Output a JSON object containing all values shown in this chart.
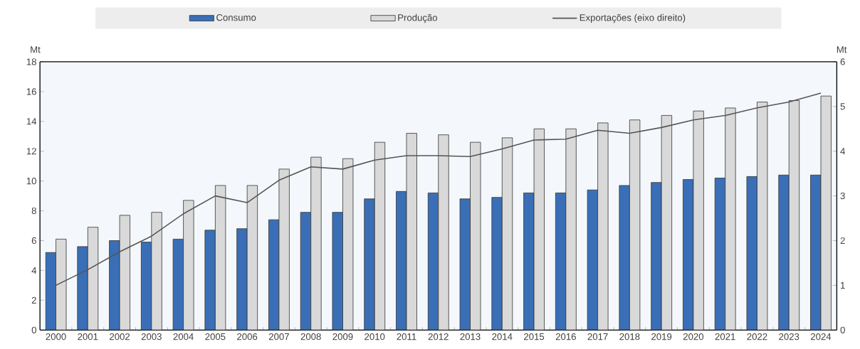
{
  "chart_data": {
    "type": "bar",
    "ylabel": "Mt",
    "y2label": "Mt",
    "categories": [
      "2000",
      "2001",
      "2002",
      "2003",
      "2004",
      "2005",
      "2006",
      "2007",
      "2008",
      "2009",
      "2010",
      "2011",
      "2012",
      "2013",
      "2014",
      "2015",
      "2016",
      "2017",
      "2018",
      "2019",
      "2020",
      "2021",
      "2022",
      "2023",
      "2024"
    ],
    "series": [
      {
        "name": "Consumo",
        "color": "#3a6fb7",
        "values": [
          5.2,
          5.6,
          6.0,
          5.9,
          6.1,
          6.7,
          6.8,
          7.4,
          7.9,
          7.9,
          8.8,
          9.3,
          9.2,
          8.8,
          8.9,
          9.2,
          9.2,
          9.4,
          9.7,
          9.9,
          10.1,
          10.2,
          10.3,
          10.4,
          10.4
        ]
      },
      {
        "name": "Produção",
        "color": "#d9d9d9",
        "values": [
          6.1,
          6.9,
          7.7,
          7.9,
          8.7,
          9.7,
          9.7,
          10.8,
          11.6,
          11.5,
          12.6,
          13.2,
          13.1,
          12.6,
          12.9,
          13.5,
          13.5,
          13.9,
          14.1,
          14.4,
          14.7,
          14.9,
          15.3,
          15.4,
          15.7
        ]
      },
      {
        "name": "Exportações (eixo direito)",
        "type": "line",
        "axis": "y2",
        "color": "#555555",
        "values": [
          1.0,
          1.35,
          1.75,
          2.1,
          2.6,
          3.0,
          2.85,
          3.35,
          3.65,
          3.6,
          3.8,
          3.9,
          3.9,
          3.88,
          4.05,
          4.25,
          4.27,
          4.47,
          4.4,
          4.53,
          4.7,
          4.8,
          4.97,
          5.1,
          5.3
        ]
      }
    ],
    "ylim": [
      0,
      18
    ],
    "yticks": [
      0,
      2,
      4,
      6,
      8,
      10,
      12,
      14,
      16,
      18
    ],
    "y2lim": [
      0,
      6
    ],
    "y2ticks": [
      0,
      1,
      2,
      3,
      4,
      5,
      6
    ],
    "grid": false,
    "legend": "top"
  }
}
